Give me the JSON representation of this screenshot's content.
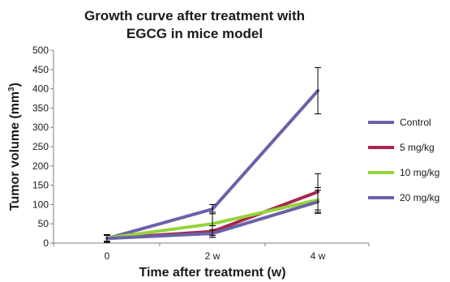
{
  "chart_data": {
    "type": "line",
    "title_lines": [
      "Growth curve after treatment with",
      "EGCG in mice model"
    ],
    "xlabel": "Time after treatment (w)",
    "ylabel_main": "Tumor volume (mm",
    "ylabel_sup": "3",
    "ylabel_close": ")",
    "categories": [
      "0",
      "2 w",
      "4 w"
    ],
    "ylim": [
      0,
      500
    ],
    "yticks": [
      0,
      50,
      100,
      150,
      200,
      250,
      300,
      350,
      400,
      450,
      500
    ],
    "grid": false,
    "legend_position": "right",
    "series": [
      {
        "name": "Control",
        "color": "#6a62a8",
        "values": [
          12,
          88,
          395
        ],
        "errors": [
          10,
          12,
          60
        ]
      },
      {
        "name": "5 mg/kg",
        "color": "#a8264e",
        "values": [
          12,
          30,
          133
        ],
        "errors": [
          8,
          15,
          47
        ]
      },
      {
        "name": "10 mg/kg",
        "color": "#93d43a",
        "values": [
          13,
          50,
          112
        ],
        "errors": [
          8,
          30,
          32
        ]
      },
      {
        "name": "20 mg/kg",
        "color": "#6a62a8",
        "values": [
          12,
          25,
          107
        ],
        "errors": [
          8,
          10,
          30
        ]
      }
    ]
  }
}
